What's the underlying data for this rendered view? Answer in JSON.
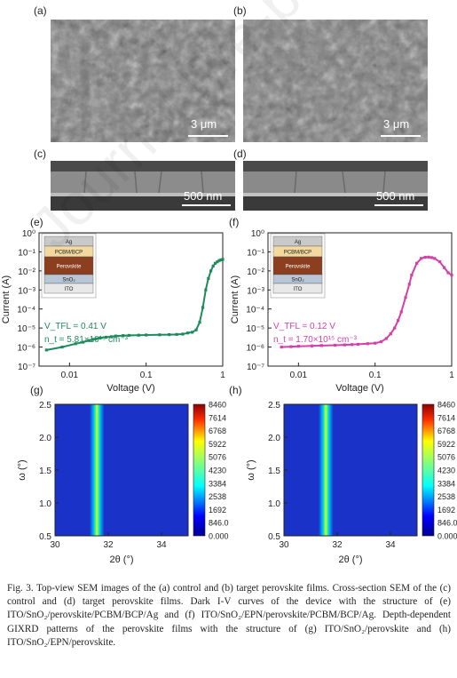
{
  "panels": {
    "a": {
      "label": "(a)",
      "scale": "3 μm"
    },
    "b": {
      "label": "(b)",
      "scale": "3 μm"
    },
    "c": {
      "label": "(c)",
      "scale": "500 nm"
    },
    "d": {
      "label": "(d)",
      "scale": "500 nm"
    },
    "e": {
      "label": "(e)"
    },
    "f": {
      "label": "(f)"
    },
    "g": {
      "label": "(g)"
    },
    "h": {
      "label": "(h)"
    }
  },
  "watermark": "Journal Pre-proofs",
  "device_e": {
    "layers": [
      "Ag",
      "PCBM/BCP",
      "Perovskite",
      "SnO₂",
      "ITO"
    ]
  },
  "device_f": {
    "layers": [
      "Ag",
      "PCBM/BCP",
      "Perovskite",
      "SnO₂",
      "ITO"
    ]
  },
  "chart_data": [
    {
      "type": "scatter",
      "panel": "(e)",
      "xlabel": "Voltage (V)",
      "ylabel": "Current (A)",
      "xscale": "log",
      "yscale": "log",
      "xlim": [
        0.004,
        1
      ],
      "ylim": [
        1e-07,
        1
      ],
      "xticks": [
        "0.01",
        "0.1",
        "1"
      ],
      "yticks": [
        "10⁻⁷",
        "10⁻⁶",
        "10⁻⁵",
        "10⁻⁴",
        "10⁻³",
        "10⁻²",
        "10⁻¹",
        "10⁰"
      ],
      "color": "#1f8a5c",
      "annotations": [
        "V_TFL = 0.41 V",
        "n_t = 5.81×10¹⁵ cm⁻³"
      ],
      "x": [
        0.005,
        0.008,
        0.012,
        0.015,
        0.018,
        0.02,
        0.022,
        0.025,
        0.03,
        0.035,
        0.04,
        0.05,
        0.06,
        0.08,
        0.1,
        0.15,
        0.2,
        0.25,
        0.3,
        0.35,
        0.4,
        0.45,
        0.5,
        0.55,
        0.6,
        0.65,
        0.7,
        0.75,
        0.8,
        0.85,
        0.9,
        0.95,
        1.0
      ],
      "y": [
        7e-07,
        1e-06,
        1.5e-06,
        1.8e-06,
        2.2e-06,
        2.5e-06,
        2.7e-06,
        3e-06,
        3.3e-06,
        3.5e-06,
        3.8e-06,
        4e-06,
        4.1e-06,
        4.2e-06,
        4.3e-06,
        4.4e-06,
        4.5e-06,
        4.6e-06,
        4.8e-06,
        5.5e-06,
        6e-06,
        8e-06,
        2e-05,
        0.00012,
        0.001,
        0.004,
        0.01,
        0.018,
        0.025,
        0.03,
        0.035,
        0.038,
        0.04
      ]
    },
    {
      "type": "scatter",
      "panel": "(f)",
      "xlabel": "Voltage (V)",
      "ylabel": "Current (A)",
      "xscale": "log",
      "yscale": "log",
      "xlim": [
        0.004,
        1
      ],
      "ylim": [
        1e-07,
        1
      ],
      "xticks": [
        "0.01",
        "0.1",
        "1"
      ],
      "yticks": [
        "10⁻⁷",
        "10⁻⁶",
        "10⁻⁵",
        "10⁻⁴",
        "10⁻³",
        "10⁻²",
        "10⁻¹",
        "10⁰"
      ],
      "color": "#d63fa8",
      "annotations": [
        "V_TFL = 0.12 V",
        "n_t = 1.70×10¹⁵ cm⁻³"
      ],
      "x": [
        0.006,
        0.008,
        0.01,
        0.015,
        0.02,
        0.03,
        0.04,
        0.05,
        0.06,
        0.08,
        0.1,
        0.12,
        0.14,
        0.16,
        0.18,
        0.2,
        0.22,
        0.25,
        0.28,
        0.3,
        0.35,
        0.4,
        0.45,
        0.5,
        0.55,
        0.6,
        0.7,
        0.8,
        0.9,
        1.0
      ],
      "y": [
        1e-06,
        1.05e-06,
        1.1e-06,
        1.15e-06,
        1.2e-06,
        1.25e-06,
        1.3e-06,
        1.35e-06,
        1.4e-06,
        1.5e-06,
        1.6e-06,
        1.9e-06,
        2.8e-06,
        5e-06,
        1e-05,
        2.5e-05,
        7e-05,
        0.0004,
        0.002,
        0.006,
        0.025,
        0.045,
        0.052,
        0.053,
        0.05,
        0.045,
        0.03,
        0.015,
        0.008,
        0.006
      ]
    },
    {
      "type": "heatmap",
      "panel": "(g)",
      "xlabel": "2θ (°)",
      "ylabel": "ω (°)",
      "xlim": [
        30,
        35
      ],
      "ylim": [
        0.5,
        2.5
      ],
      "xticks": [
        "30",
        "32",
        "34"
      ],
      "yticks": [
        "0.5",
        "1.0",
        "1.5",
        "2.0",
        "2.5"
      ],
      "peak_2theta": 31.4,
      "colorbar": [
        "8460",
        "7614",
        "6768",
        "5922",
        "5076",
        "4230",
        "3384",
        "2538",
        "1692",
        "846.0",
        "0.000"
      ]
    },
    {
      "type": "heatmap",
      "panel": "(h)",
      "xlabel": "2θ (°)",
      "ylabel": "ω (°)",
      "xlim": [
        30,
        35
      ],
      "ylim": [
        0.5,
        2.5
      ],
      "xticks": [
        "30",
        "32",
        "34"
      ],
      "yticks": [
        "0.5",
        "1.0",
        "1.5",
        "2.0",
        "2.5"
      ],
      "peak_2theta": 31.4,
      "colorbar": [
        "8460",
        "7614",
        "6768",
        "5922",
        "5076",
        "4230",
        "3384",
        "2538",
        "1692",
        "846.0",
        "0.000"
      ]
    }
  ],
  "caption": "Fig. 3. Top-view SEM images of the (a) control and (b) target perovskite films. Cross-section SEM of the (c) control and (d) target perovskite films. Dark I-V curves of the device with the structure of (e) ITO/SnO₂/perovskite/PCBM/BCP/Ag and (f) ITO/SnO₂/EPN/perovskite/PCBM/BCP/Ag. Depth-dependent GIXRD patterns of the perovskite films with the structure of (g) ITO/SnO₂/perovskite and (h) ITO/SnO₂/EPN/perovskite."
}
